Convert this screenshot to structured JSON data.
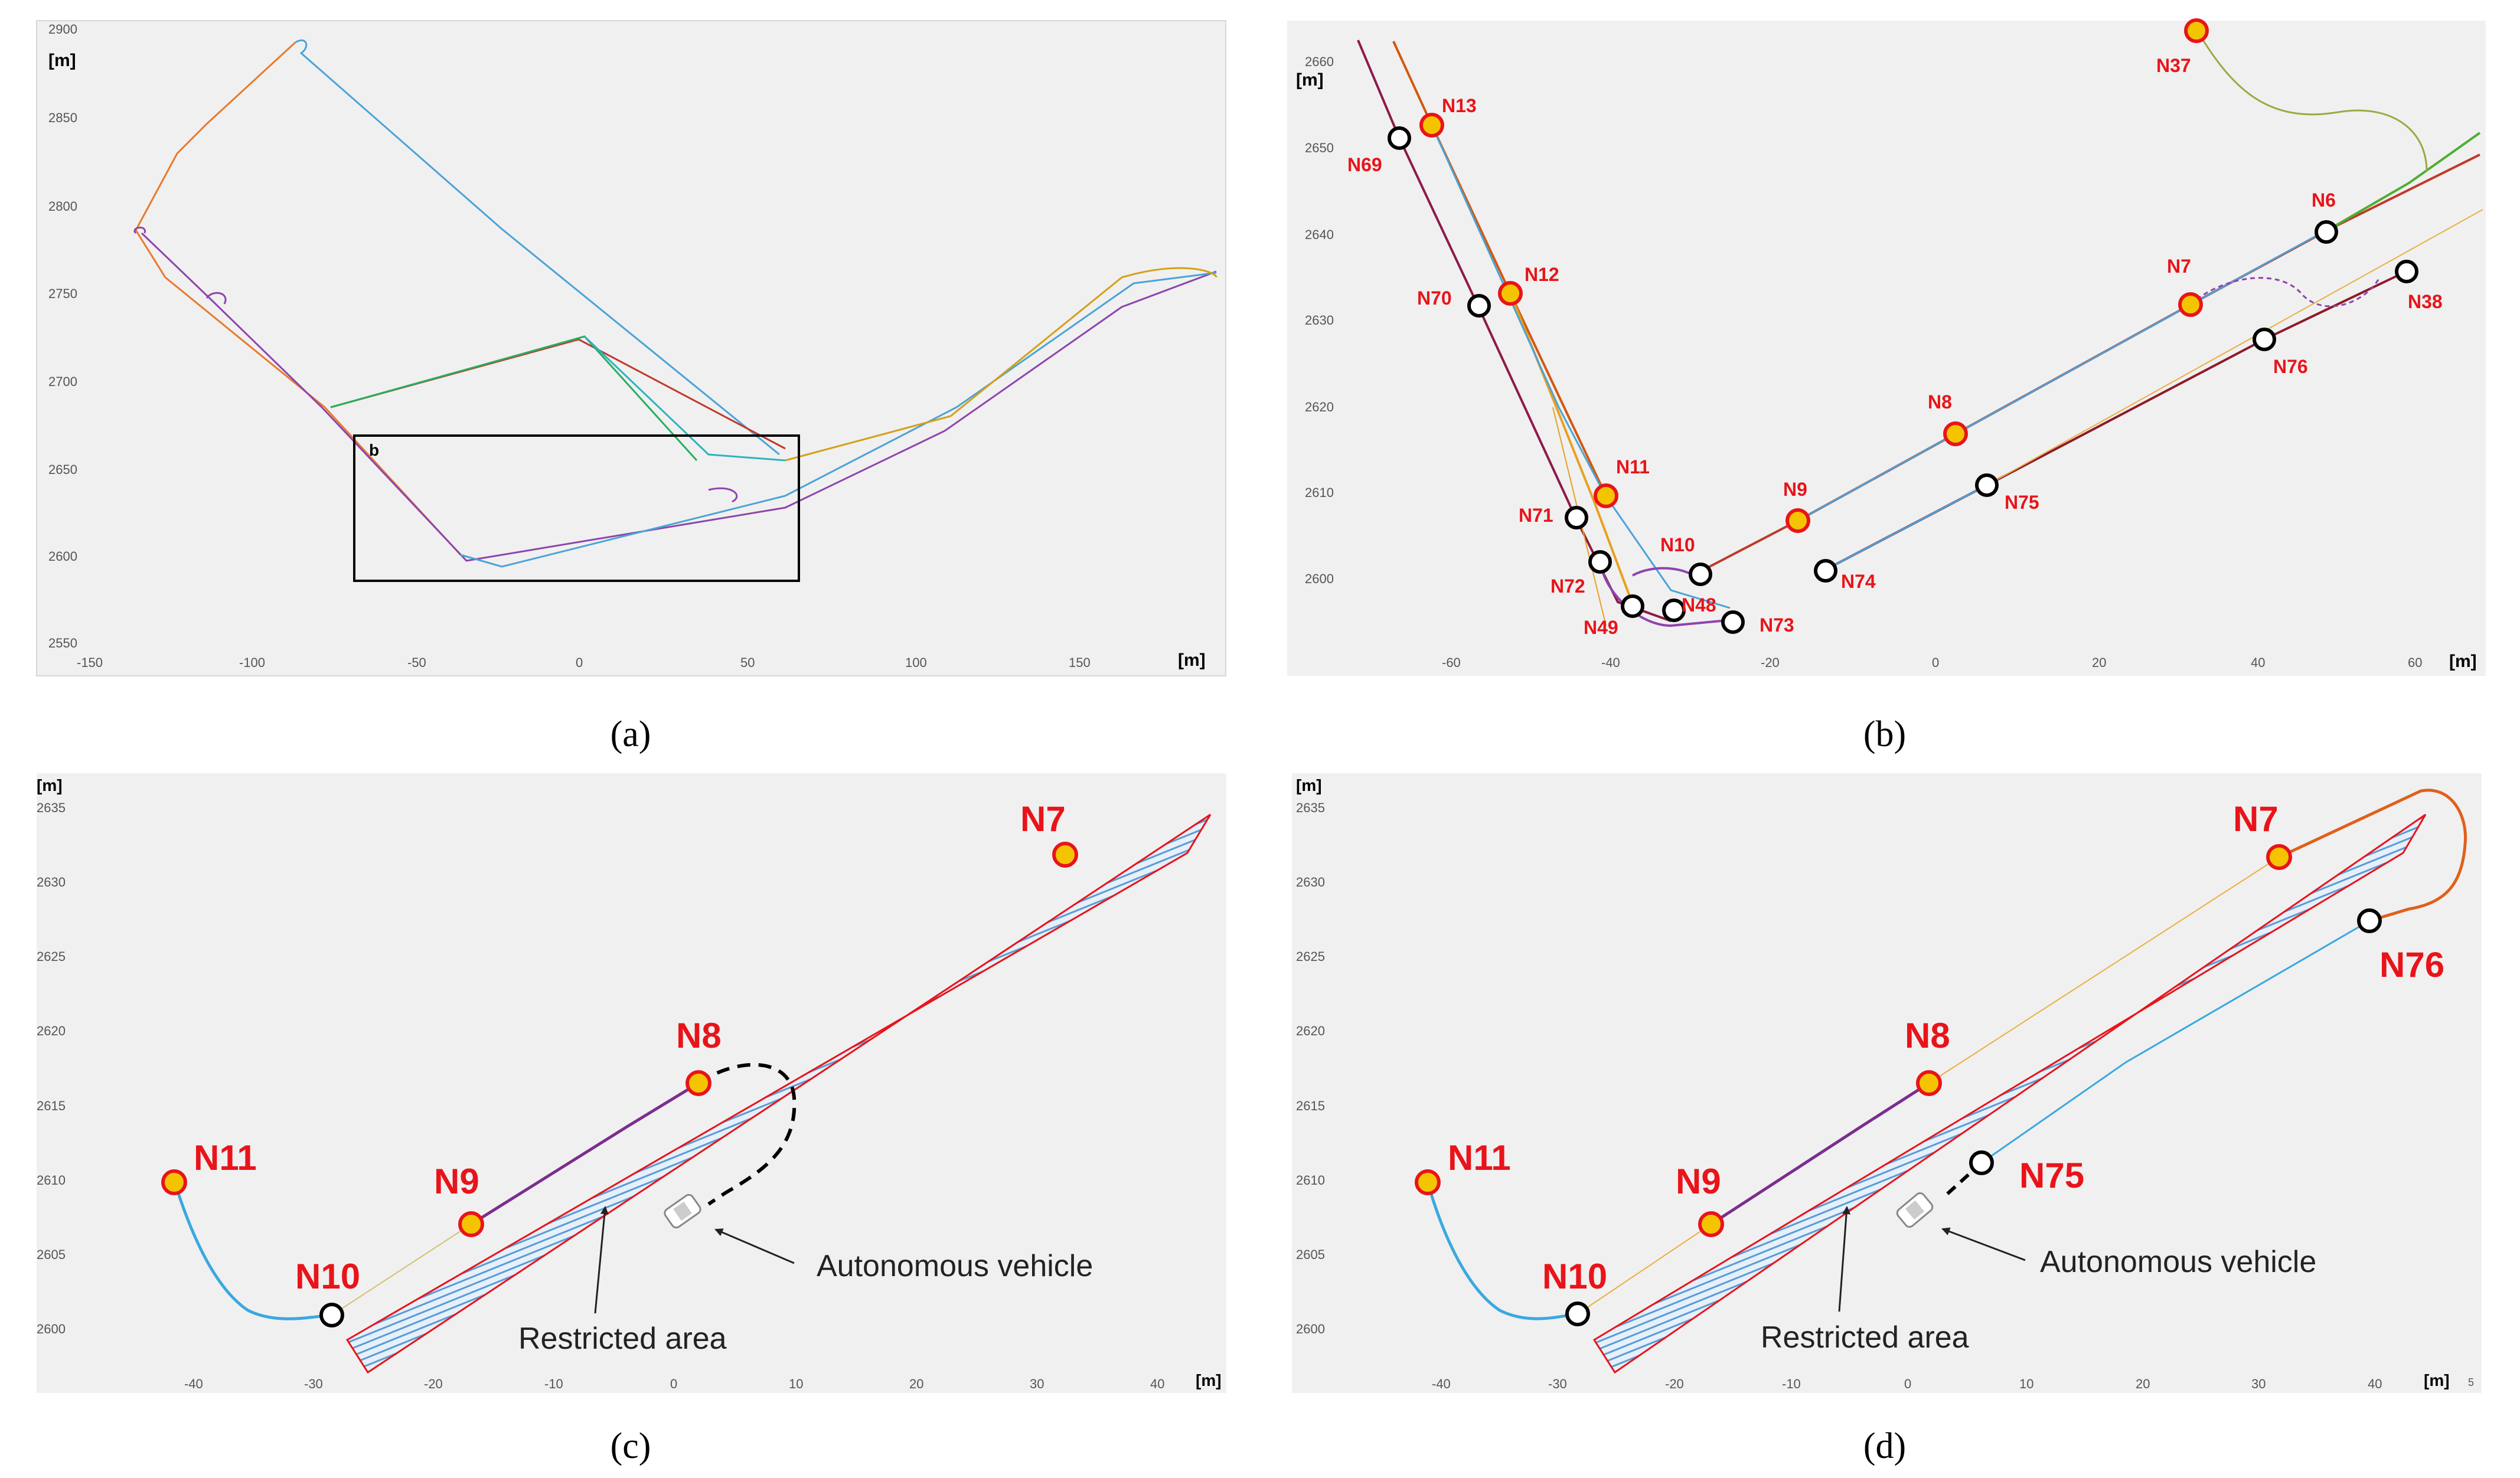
{
  "colors": {
    "red_label": "#e8141a",
    "node_fill": "#f5c400",
    "node_stroke": "#e8141a",
    "hatch": "#5b9bd5",
    "zone_border": "#e8141a"
  },
  "captions": {
    "a": "(a)",
    "b": "(b)",
    "c": "(c)",
    "d": "(d)",
    "a_letter": "a",
    "b_letter": "b",
    "c_letter": "c",
    "d_letter": "d"
  },
  "unit": "[m]",
  "panel_a": {
    "y_ticks": [
      "2900",
      "2850",
      "2800",
      "2750",
      "2700",
      "2650",
      "2600",
      "2550"
    ],
    "x_ticks": [
      "-150",
      "-100",
      "-50",
      "0",
      "50",
      "100",
      "150"
    ],
    "box_label": "b"
  },
  "panel_b": {
    "y_ticks": [
      "2660",
      "2650",
      "2640",
      "2630",
      "2620",
      "2610",
      "2600"
    ],
    "x_ticks": [
      "-60",
      "-40",
      "-20",
      "0",
      "20",
      "40",
      "60"
    ],
    "red_nodes": [
      "N13",
      "N12",
      "N11",
      "N9",
      "N8",
      "N7",
      "N37"
    ],
    "black_nodes": [
      "N69",
      "N70",
      "N71",
      "N72",
      "N49",
      "N48",
      "N10",
      "N73",
      "N74",
      "N75",
      "N76",
      "N6",
      "N38"
    ]
  },
  "panel_c": {
    "y_ticks": [
      "2635",
      "2630",
      "2625",
      "2620",
      "2615",
      "2610",
      "2605",
      "2600"
    ],
    "x_ticks": [
      "-40",
      "-30",
      "-20",
      "-10",
      "0",
      "10",
      "20",
      "30",
      "40"
    ],
    "nodes": [
      "N11",
      "N10",
      "N9",
      "N8",
      "N7"
    ],
    "restricted_label": "Restricted area",
    "vehicle_label": "Autonomous vehicle"
  },
  "panel_d": {
    "y_ticks": [
      "2635",
      "2630",
      "2625",
      "2620",
      "2615",
      "2610",
      "2605",
      "2600"
    ],
    "x_ticks": [
      "-40",
      "-30",
      "-20",
      "-10",
      "0",
      "10",
      "20",
      "30",
      "40"
    ],
    "x_extra": "5",
    "nodes": [
      "N11",
      "N10",
      "N9",
      "N8",
      "N7",
      "N76",
      "N75"
    ],
    "restricted_label": "Restricted area",
    "vehicle_label": "Autonomous vehicle"
  }
}
